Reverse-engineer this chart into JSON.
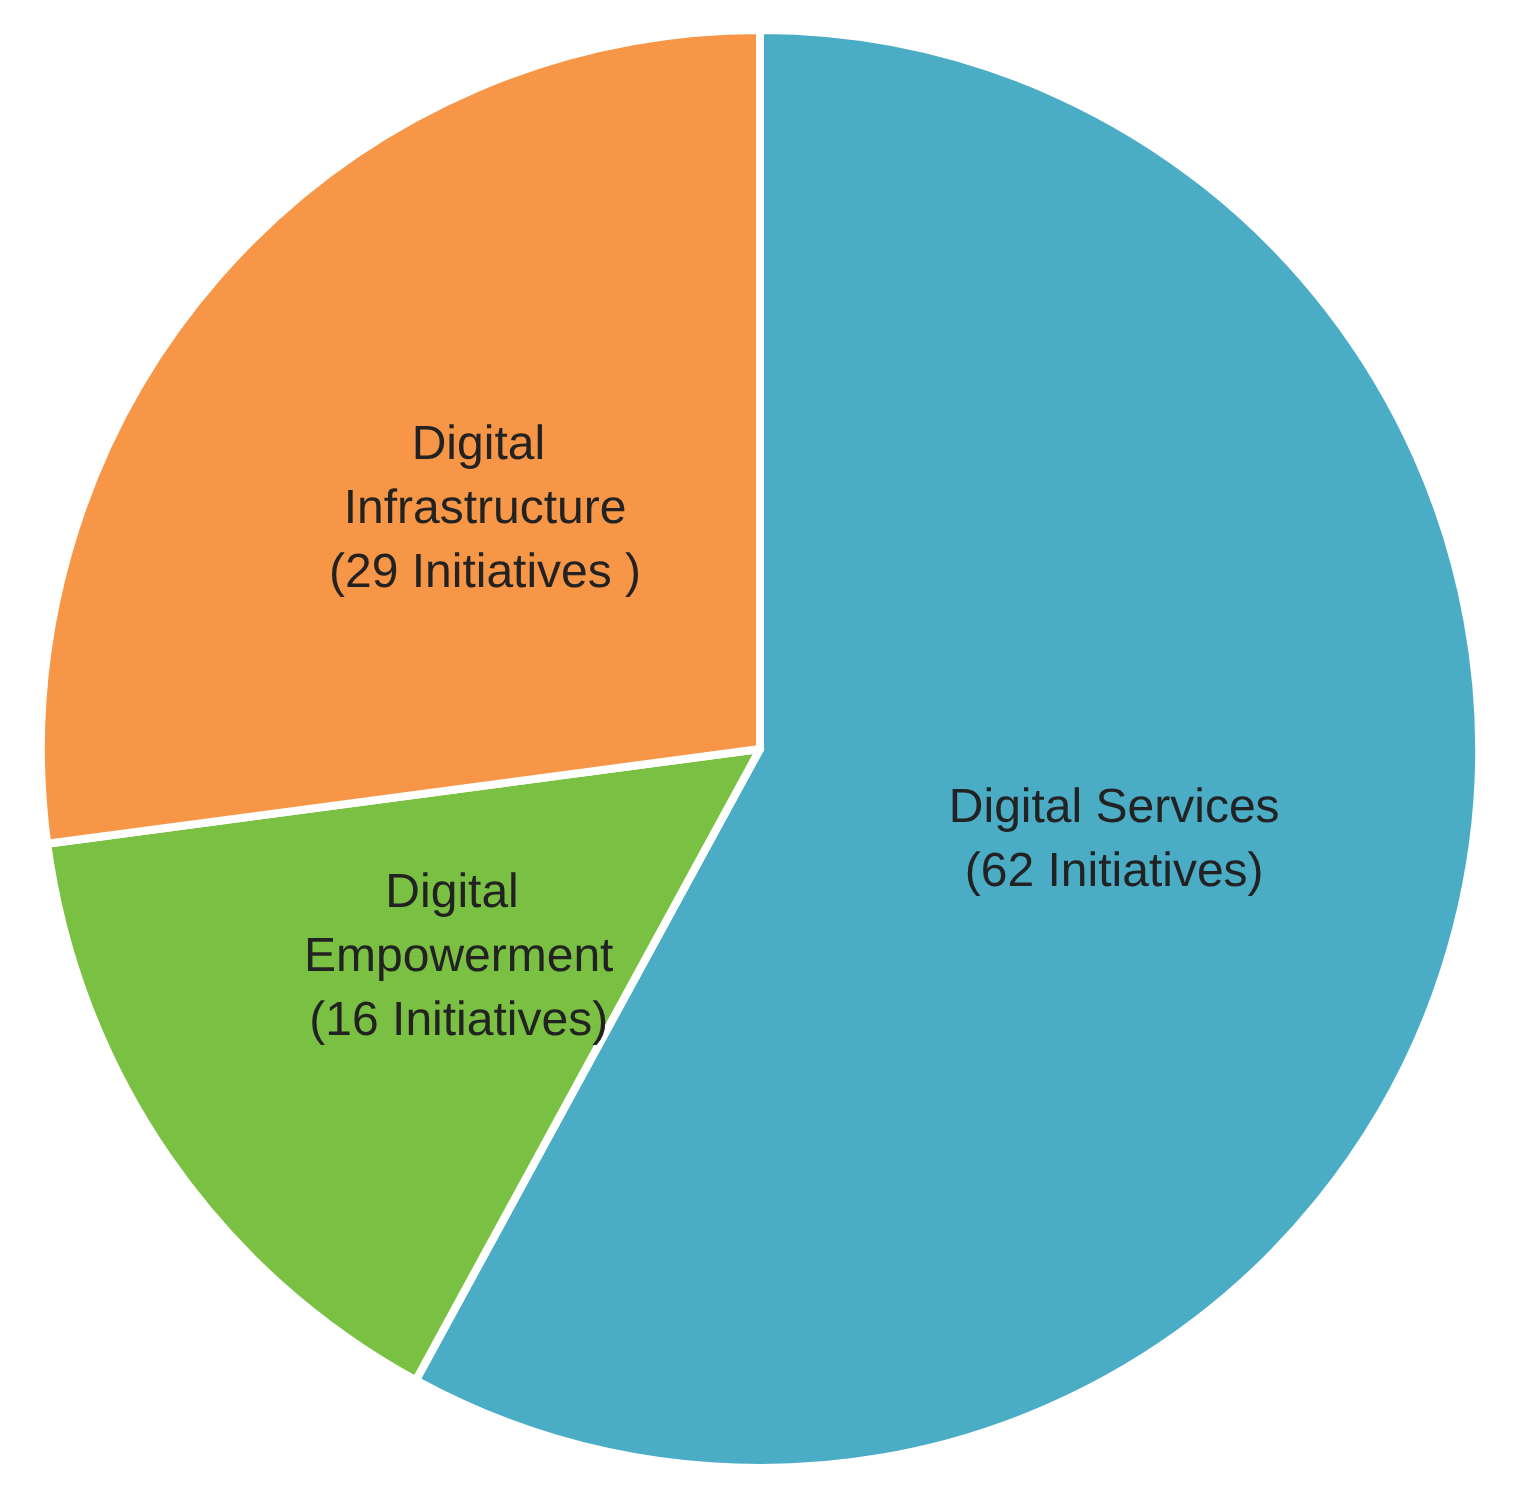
{
  "chart_data": {
    "type": "pie",
    "categories": [
      "Digital Services",
      "Digital Empowerment",
      "Digital Infrastructure"
    ],
    "values": [
      62,
      16,
      29
    ],
    "value_labels": [
      "(62 Initiatives)",
      "(16 Initiatives)",
      "(29 Initiatives )"
    ],
    "colors": [
      "#4bacc6",
      "#7ac143",
      "#f79646"
    ],
    "legend": false
  }
}
